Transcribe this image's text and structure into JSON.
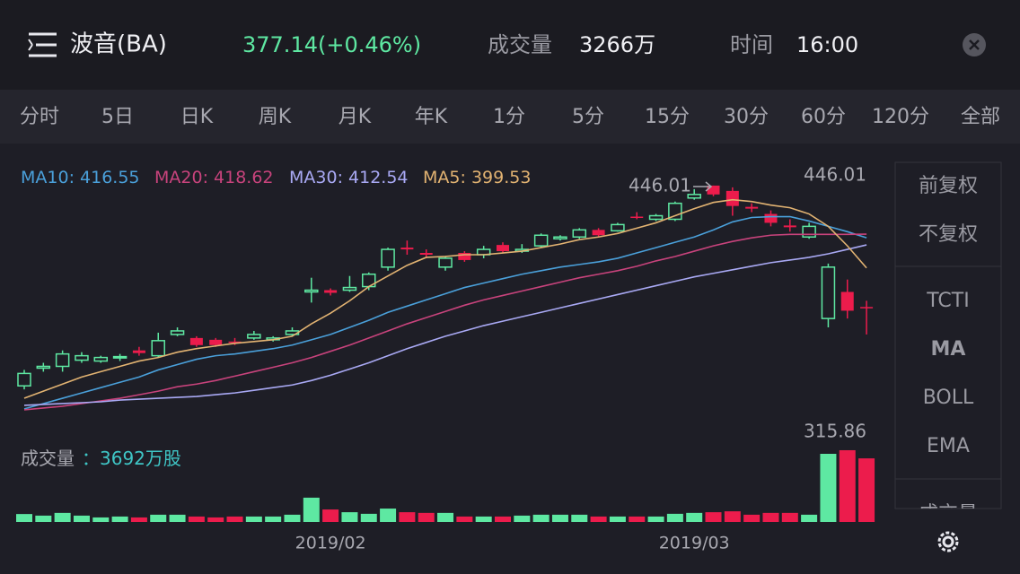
{
  "header": {
    "title": "波音(BA)",
    "price": "377.14(+0.46%)",
    "volume_label": "成交量",
    "volume": "3266万",
    "time_label": "时间",
    "time": "16:00"
  },
  "tabs": [
    "分时",
    "5日",
    "日K",
    "周K",
    "月K",
    "年K",
    "1分",
    "5分",
    "15分",
    "30分",
    "60分",
    "120分",
    "全部"
  ],
  "active_tab": 2,
  "side_panel": {
    "adjust": [
      "前复权",
      "不复权"
    ],
    "indicators": [
      "TCTI",
      "MA",
      "BOLL",
      "EMA"
    ],
    "more": "成交量"
  },
  "chart_data": {
    "type": "candlestick",
    "categories": [
      null,
      null,
      null,
      null,
      null,
      null,
      null,
      null,
      null,
      null,
      null,
      null,
      null,
      null,
      null,
      null,
      "2019/02",
      null,
      null,
      null,
      null,
      null,
      null,
      null,
      null,
      null,
      null,
      null,
      null,
      null,
      null,
      null,
      null,
      null,
      null,
      "2019/03",
      null,
      null,
      null,
      null,
      null,
      null,
      null,
      null,
      null
    ],
    "open": [
      333,
      343,
      344,
      347.5,
      347,
      349,
      353,
      350,
      362,
      360,
      359,
      358,
      360,
      359,
      362,
      386,
      387,
      387,
      389,
      400,
      411,
      408,
      400,
      408,
      407,
      412.5,
      409,
      412,
      416,
      417,
      421,
      420.5,
      428.5,
      427,
      427,
      439,
      446,
      443,
      434,
      430,
      423.5,
      417,
      371,
      386,
      377.5
    ],
    "high": [
      342,
      346,
      353,
      352,
      350,
      351,
      355,
      363,
      366,
      361,
      360,
      360,
      364,
      361,
      366,
      394,
      388,
      395,
      397,
      411,
      415,
      410,
      406,
      409,
      412,
      414,
      413,
      419,
      418,
      422,
      422,
      425,
      431,
      430,
      437,
      444,
      446.01,
      445,
      436,
      432,
      427,
      425,
      402,
      393,
      381
    ],
    "low": [
      331,
      341,
      341,
      346,
      346,
      347,
      350,
      349,
      361,
      355,
      355,
      356,
      359,
      358,
      361,
      380,
      384,
      386,
      387,
      398,
      407,
      405,
      398,
      403,
      405,
      408,
      408,
      411,
      415,
      416,
      417,
      420,
      427,
      426,
      426,
      438,
      440,
      429,
      431,
      423,
      420,
      416,
      366,
      371,
      362
    ],
    "close": [
      340,
      344,
      351,
      350,
      349,
      349.5,
      351.5,
      358.5,
      364,
      356,
      356,
      357.5,
      362,
      360,
      364,
      387,
      385.5,
      388.5,
      396,
      410,
      410,
      407,
      405,
      404,
      410,
      409,
      410,
      418,
      417,
      421,
      418,
      424,
      428,
      429,
      436,
      441,
      441,
      434.5,
      433,
      425,
      422.5,
      423,
      400,
      375.4,
      377.14
    ],
    "up_color": "#5ee8a2",
    "down_color": "#ec1c4c",
    "ylim": [
      315.4,
      457.1
    ],
    "legend_separator": ": ",
    "series": [
      {
        "name": "MA10",
        "color": "#4aa0da",
        "values": [
          320,
          323,
          326,
          329,
          332,
          335,
          338,
          342,
          345,
          348,
          350,
          351,
          352.5,
          354,
          356,
          359,
          362,
          366,
          370,
          374.5,
          378,
          381.5,
          385,
          388.5,
          391,
          393.5,
          396,
          398,
          400,
          401.5,
          403,
          405,
          408,
          411,
          414,
          417,
          421,
          425.5,
          428,
          428.5,
          428.5,
          426,
          423,
          420,
          416.55
        ]
      },
      {
        "name": "MA20",
        "color": "#c8437c",
        "values": [
          319.5,
          320.5,
          321.5,
          323,
          324.5,
          326,
          328,
          330,
          332.5,
          334,
          336,
          338.5,
          341,
          343.5,
          346,
          349,
          352.5,
          356,
          360,
          364,
          368,
          371.5,
          375,
          378.5,
          381.5,
          384,
          386.5,
          389,
          391.5,
          394,
          396,
          398,
          400.5,
          403.5,
          406,
          409,
          412,
          414.5,
          416.5,
          418,
          418.5,
          418.5,
          418.5,
          418.5,
          418.62
        ]
      },
      {
        "name": "MA30",
        "color": "#a9a9f4",
        "values": [
          322,
          322.5,
          323,
          323.5,
          324,
          325,
          325.5,
          326,
          326.5,
          327,
          328,
          329,
          330.5,
          332,
          333.5,
          336,
          339,
          342.5,
          346,
          350,
          354,
          357.5,
          361,
          364,
          367,
          369.5,
          372,
          374.5,
          377,
          379.5,
          382,
          384.5,
          387,
          389.5,
          392,
          394.5,
          396.5,
          398.5,
          400.5,
          402.5,
          404,
          405.5,
          407.5,
          410,
          412.54
        ]
      },
      {
        "name": "MA5",
        "color": "#e2b372",
        "values": [
          326,
          330,
          334,
          338,
          341,
          344,
          347,
          349,
          352,
          354,
          355.5,
          357,
          358,
          359,
          361,
          368,
          374,
          381,
          389,
          395,
          401,
          405.5,
          406,
          407,
          407,
          408,
          409,
          411,
          413,
          415.5,
          417,
          419,
          422,
          425,
          429,
          433,
          436.5,
          438,
          437,
          435,
          433.5,
          430,
          423,
          412,
          399.53
        ]
      }
    ],
    "volume": {
      "title": "成交量",
      "current": "：3692万股",
      "ylim": [
        0,
        330
      ],
      "values": [
        35,
        28,
        40,
        28,
        20,
        24,
        20,
        32,
        32,
        24,
        20,
        24,
        24,
        24,
        32,
        107,
        55,
        43,
        36,
        59,
        43,
        40,
        40,
        24,
        24,
        24,
        28,
        32,
        32,
        32,
        24,
        24,
        24,
        24,
        36,
        40,
        43,
        47,
        32,
        40,
        40,
        32,
        300,
        315.86,
        280
      ]
    }
  }
}
